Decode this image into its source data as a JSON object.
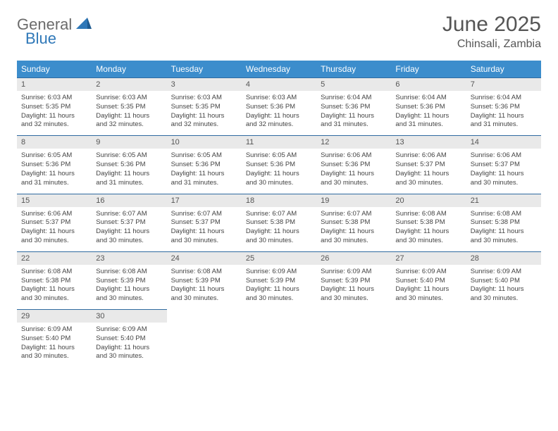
{
  "logo": {
    "part1": "General",
    "part2": "Blue"
  },
  "title": "June 2025",
  "location": "Chinsali, Zambia",
  "colors": {
    "header_bg": "#3c8dcc",
    "header_text": "#ffffff",
    "daynum_bg": "#e9e9e9",
    "rule": "#2f6aa0",
    "logo_gray": "#6b6b6b",
    "logo_blue": "#2f78b8"
  },
  "weekdays": [
    "Sunday",
    "Monday",
    "Tuesday",
    "Wednesday",
    "Thursday",
    "Friday",
    "Saturday"
  ],
  "days": [
    {
      "n": 1,
      "sunrise": "6:03 AM",
      "sunset": "5:35 PM",
      "daylight": "11 hours and 32 minutes."
    },
    {
      "n": 2,
      "sunrise": "6:03 AM",
      "sunset": "5:35 PM",
      "daylight": "11 hours and 32 minutes."
    },
    {
      "n": 3,
      "sunrise": "6:03 AM",
      "sunset": "5:35 PM",
      "daylight": "11 hours and 32 minutes."
    },
    {
      "n": 4,
      "sunrise": "6:03 AM",
      "sunset": "5:36 PM",
      "daylight": "11 hours and 32 minutes."
    },
    {
      "n": 5,
      "sunrise": "6:04 AM",
      "sunset": "5:36 PM",
      "daylight": "11 hours and 31 minutes."
    },
    {
      "n": 6,
      "sunrise": "6:04 AM",
      "sunset": "5:36 PM",
      "daylight": "11 hours and 31 minutes."
    },
    {
      "n": 7,
      "sunrise": "6:04 AM",
      "sunset": "5:36 PM",
      "daylight": "11 hours and 31 minutes."
    },
    {
      "n": 8,
      "sunrise": "6:05 AM",
      "sunset": "5:36 PM",
      "daylight": "11 hours and 31 minutes."
    },
    {
      "n": 9,
      "sunrise": "6:05 AM",
      "sunset": "5:36 PM",
      "daylight": "11 hours and 31 minutes."
    },
    {
      "n": 10,
      "sunrise": "6:05 AM",
      "sunset": "5:36 PM",
      "daylight": "11 hours and 31 minutes."
    },
    {
      "n": 11,
      "sunrise": "6:05 AM",
      "sunset": "5:36 PM",
      "daylight": "11 hours and 30 minutes."
    },
    {
      "n": 12,
      "sunrise": "6:06 AM",
      "sunset": "5:36 PM",
      "daylight": "11 hours and 30 minutes."
    },
    {
      "n": 13,
      "sunrise": "6:06 AM",
      "sunset": "5:37 PM",
      "daylight": "11 hours and 30 minutes."
    },
    {
      "n": 14,
      "sunrise": "6:06 AM",
      "sunset": "5:37 PM",
      "daylight": "11 hours and 30 minutes."
    },
    {
      "n": 15,
      "sunrise": "6:06 AM",
      "sunset": "5:37 PM",
      "daylight": "11 hours and 30 minutes."
    },
    {
      "n": 16,
      "sunrise": "6:07 AM",
      "sunset": "5:37 PM",
      "daylight": "11 hours and 30 minutes."
    },
    {
      "n": 17,
      "sunrise": "6:07 AM",
      "sunset": "5:37 PM",
      "daylight": "11 hours and 30 minutes."
    },
    {
      "n": 18,
      "sunrise": "6:07 AM",
      "sunset": "5:38 PM",
      "daylight": "11 hours and 30 minutes."
    },
    {
      "n": 19,
      "sunrise": "6:07 AM",
      "sunset": "5:38 PM",
      "daylight": "11 hours and 30 minutes."
    },
    {
      "n": 20,
      "sunrise": "6:08 AM",
      "sunset": "5:38 PM",
      "daylight": "11 hours and 30 minutes."
    },
    {
      "n": 21,
      "sunrise": "6:08 AM",
      "sunset": "5:38 PM",
      "daylight": "11 hours and 30 minutes."
    },
    {
      "n": 22,
      "sunrise": "6:08 AM",
      "sunset": "5:38 PM",
      "daylight": "11 hours and 30 minutes."
    },
    {
      "n": 23,
      "sunrise": "6:08 AM",
      "sunset": "5:39 PM",
      "daylight": "11 hours and 30 minutes."
    },
    {
      "n": 24,
      "sunrise": "6:08 AM",
      "sunset": "5:39 PM",
      "daylight": "11 hours and 30 minutes."
    },
    {
      "n": 25,
      "sunrise": "6:09 AM",
      "sunset": "5:39 PM",
      "daylight": "11 hours and 30 minutes."
    },
    {
      "n": 26,
      "sunrise": "6:09 AM",
      "sunset": "5:39 PM",
      "daylight": "11 hours and 30 minutes."
    },
    {
      "n": 27,
      "sunrise": "6:09 AM",
      "sunset": "5:40 PM",
      "daylight": "11 hours and 30 minutes."
    },
    {
      "n": 28,
      "sunrise": "6:09 AM",
      "sunset": "5:40 PM",
      "daylight": "11 hours and 30 minutes."
    },
    {
      "n": 29,
      "sunrise": "6:09 AM",
      "sunset": "5:40 PM",
      "daylight": "11 hours and 30 minutes."
    },
    {
      "n": 30,
      "sunrise": "6:09 AM",
      "sunset": "5:40 PM",
      "daylight": "11 hours and 30 minutes."
    }
  ],
  "labels": {
    "sunrise": "Sunrise:",
    "sunset": "Sunset:",
    "daylight": "Daylight:"
  },
  "layout": {
    "start_weekday": 0,
    "columns": 7
  }
}
